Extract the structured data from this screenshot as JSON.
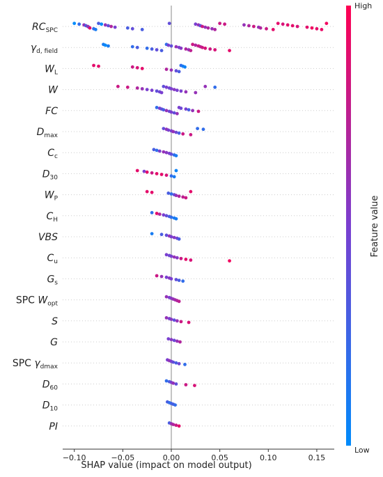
{
  "chart_data": {
    "type": "scatter",
    "subtype": "shap-beeswarm",
    "title": "",
    "xlabel": "SHAP value (impact on model output)",
    "xlim": [
      -0.112,
      0.168
    ],
    "xticks": [
      -0.1,
      -0.05,
      0.0,
      0.05,
      0.1,
      0.15
    ],
    "xtick_labels": [
      "−0.10",
      "−0.05",
      "0.00",
      "0.05",
      "0.10",
      "0.15"
    ],
    "grid": "dotted row lines",
    "colorbar": {
      "title": "Feature value",
      "high_label": "High",
      "low_label": "Low",
      "high_color": "#ff0052",
      "low_color": "#008bfb",
      "placement": "right"
    },
    "features": [
      {
        "name": "RC_SPC",
        "label_main": "RC",
        "label_sub": "SPC",
        "italic_main": true,
        "points": [
          [
            -0.1,
            0.0
          ],
          [
            -0.095,
            0.2
          ],
          [
            -0.09,
            0.6
          ],
          [
            -0.088,
            0.3
          ],
          [
            -0.086,
            0.7
          ],
          [
            -0.085,
            0.4
          ],
          [
            -0.084,
            0.9
          ],
          [
            -0.08,
            0.2
          ],
          [
            -0.078,
            0.1
          ],
          [
            -0.075,
            0.3
          ],
          [
            -0.072,
            0.0
          ],
          [
            -0.068,
            0.6
          ],
          [
            -0.065,
            0.4
          ],
          [
            -0.062,
            0.7
          ],
          [
            -0.058,
            0.5
          ],
          [
            -0.045,
            0.3
          ],
          [
            -0.04,
            0.4
          ],
          [
            -0.03,
            0.3
          ],
          [
            -0.002,
            0.4
          ],
          [
            0.025,
            0.5
          ],
          [
            0.028,
            0.6
          ],
          [
            0.03,
            0.4
          ],
          [
            0.032,
            0.8
          ],
          [
            0.035,
            0.6
          ],
          [
            0.038,
            0.7
          ],
          [
            0.042,
            0.6
          ],
          [
            0.045,
            0.7
          ],
          [
            0.05,
            0.8
          ],
          [
            0.055,
            0.8
          ],
          [
            0.075,
            0.6
          ],
          [
            0.08,
            0.7
          ],
          [
            0.085,
            0.8
          ],
          [
            0.09,
            0.6
          ],
          [
            0.092,
            0.7
          ],
          [
            0.098,
            0.8
          ],
          [
            0.105,
            0.9
          ],
          [
            0.11,
            0.9
          ],
          [
            0.115,
            0.85
          ],
          [
            0.12,
            0.9
          ],
          [
            0.125,
            0.9
          ],
          [
            0.13,
            0.85
          ],
          [
            0.14,
            0.9
          ],
          [
            0.145,
            0.95
          ],
          [
            0.15,
            0.9
          ],
          [
            0.155,
            0.92
          ],
          [
            0.16,
            0.95
          ]
        ]
      },
      {
        "name": "gamma_d_field",
        "label_main": "γ",
        "label_sub": "d, field",
        "italic_main": true,
        "points": [
          [
            -0.07,
            0.1
          ],
          [
            -0.068,
            0.0
          ],
          [
            -0.065,
            0.1
          ],
          [
            -0.04,
            0.2
          ],
          [
            -0.035,
            0.3
          ],
          [
            -0.025,
            0.2
          ],
          [
            -0.02,
            0.3
          ],
          [
            -0.015,
            0.4
          ],
          [
            -0.01,
            0.3
          ],
          [
            -0.005,
            0.2
          ],
          [
            -0.003,
            0.5
          ],
          [
            0.0,
            0.4
          ],
          [
            0.005,
            0.6
          ],
          [
            0.008,
            0.5
          ],
          [
            0.01,
            0.55
          ],
          [
            0.015,
            0.7
          ],
          [
            0.018,
            0.6
          ],
          [
            0.02,
            0.75
          ],
          [
            0.022,
            0.8
          ],
          [
            0.025,
            0.7
          ],
          [
            0.028,
            0.8
          ],
          [
            0.03,
            0.75
          ],
          [
            0.032,
            0.8
          ],
          [
            0.035,
            0.85
          ],
          [
            0.04,
            0.8
          ],
          [
            0.045,
            0.85
          ],
          [
            0.06,
            0.9
          ]
        ]
      },
      {
        "name": "W_L",
        "label_main": "W",
        "label_sub": "L",
        "italic_main": true,
        "points": [
          [
            -0.08,
            0.9
          ],
          [
            -0.075,
            0.9
          ],
          [
            -0.04,
            0.8
          ],
          [
            -0.035,
            0.85
          ],
          [
            -0.03,
            0.9
          ],
          [
            -0.005,
            0.7
          ],
          [
            0.0,
            0.6
          ],
          [
            0.005,
            0.4
          ],
          [
            0.008,
            0.3
          ],
          [
            0.01,
            0.2
          ],
          [
            0.012,
            0.1
          ],
          [
            0.014,
            0.05
          ]
        ]
      },
      {
        "name": "W",
        "label_main": "W",
        "label_sub": "",
        "italic_main": true,
        "points": [
          [
            -0.055,
            0.8
          ],
          [
            -0.045,
            0.8
          ],
          [
            -0.035,
            0.7
          ],
          [
            -0.03,
            0.6
          ],
          [
            -0.025,
            0.5
          ],
          [
            -0.02,
            0.5
          ],
          [
            -0.015,
            0.4
          ],
          [
            -0.012,
            0.45
          ],
          [
            -0.01,
            0.5
          ],
          [
            -0.008,
            0.4
          ],
          [
            -0.005,
            0.5
          ],
          [
            -0.002,
            0.45
          ],
          [
            0.0,
            0.5
          ],
          [
            0.003,
            0.55
          ],
          [
            0.006,
            0.5
          ],
          [
            0.01,
            0.5
          ],
          [
            0.015,
            0.6
          ],
          [
            0.025,
            0.6
          ],
          [
            0.035,
            0.6
          ],
          [
            0.045,
            0.2
          ]
        ]
      },
      {
        "name": "FC",
        "label_main": "FC",
        "label_sub": "",
        "italic_main": true,
        "points": [
          [
            -0.015,
            0.2
          ],
          [
            -0.012,
            0.5
          ],
          [
            -0.01,
            0.4
          ],
          [
            -0.008,
            0.3
          ],
          [
            -0.005,
            0.6
          ],
          [
            -0.002,
            0.45
          ],
          [
            0.0,
            0.5
          ],
          [
            0.003,
            0.4
          ],
          [
            0.006,
            0.6
          ],
          [
            0.008,
            0.5
          ],
          [
            0.01,
            0.45
          ],
          [
            0.015,
            0.5
          ],
          [
            0.018,
            0.3
          ],
          [
            0.022,
            0.6
          ],
          [
            0.028,
            0.8
          ]
        ]
      },
      {
        "name": "D_max",
        "label_main": "D",
        "label_sub": "max",
        "italic_main": true,
        "points": [
          [
            -0.008,
            0.4
          ],
          [
            -0.005,
            0.6
          ],
          [
            -0.003,
            0.5
          ],
          [
            0.0,
            0.5
          ],
          [
            0.002,
            0.6
          ],
          [
            0.005,
            0.45
          ],
          [
            0.008,
            0.3
          ],
          [
            0.012,
            0.8
          ],
          [
            0.02,
            0.8
          ],
          [
            0.027,
            0.2
          ],
          [
            0.033,
            0.2
          ]
        ]
      },
      {
        "name": "C_c",
        "label_main": "C",
        "label_sub": "c",
        "italic_main": true,
        "points": [
          [
            -0.018,
            0.3
          ],
          [
            -0.015,
            0.2
          ],
          [
            -0.012,
            0.5
          ],
          [
            -0.008,
            0.6
          ],
          [
            -0.005,
            0.55
          ],
          [
            -0.002,
            0.5
          ],
          [
            0.0,
            0.4
          ],
          [
            0.003,
            0.2
          ],
          [
            0.005,
            0.1
          ]
        ]
      },
      {
        "name": "D_30",
        "label_main": "D",
        "label_sub": "30",
        "italic_main": true,
        "points": [
          [
            -0.035,
            0.9
          ],
          [
            -0.028,
            0.5
          ],
          [
            -0.025,
            0.9
          ],
          [
            -0.02,
            0.8
          ],
          [
            -0.015,
            0.9
          ],
          [
            -0.01,
            0.9
          ],
          [
            -0.005,
            0.85
          ],
          [
            0.0,
            0.2
          ],
          [
            0.003,
            0.1
          ],
          [
            0.005,
            0.05
          ]
        ]
      },
      {
        "name": "W_P",
        "label_main": "W",
        "label_sub": "P",
        "italic_main": true,
        "points": [
          [
            -0.025,
            0.9
          ],
          [
            -0.02,
            0.9
          ],
          [
            -0.003,
            0.3
          ],
          [
            0.0,
            0.2
          ],
          [
            0.003,
            0.4
          ],
          [
            0.005,
            0.6
          ],
          [
            0.008,
            0.7
          ],
          [
            0.012,
            0.75
          ],
          [
            0.015,
            0.8
          ],
          [
            0.02,
            0.9
          ]
        ]
      },
      {
        "name": "C_H",
        "label_main": "C",
        "label_sub": "H",
        "italic_main": true,
        "points": [
          [
            -0.02,
            0.2
          ],
          [
            -0.015,
            0.9
          ],
          [
            -0.012,
            0.7
          ],
          [
            -0.008,
            0.5
          ],
          [
            -0.005,
            0.4
          ],
          [
            -0.002,
            0.3
          ],
          [
            0.0,
            0.2
          ],
          [
            0.003,
            0.1
          ],
          [
            0.005,
            0.1
          ]
        ]
      },
      {
        "name": "VBS",
        "label_main": "VBS",
        "label_sub": "",
        "italic_main": true,
        "points": [
          [
            -0.02,
            0.1
          ],
          [
            -0.01,
            0.3
          ],
          [
            -0.005,
            0.4
          ],
          [
            -0.002,
            0.6
          ],
          [
            0.0,
            0.5
          ],
          [
            0.003,
            0.55
          ],
          [
            0.006,
            0.45
          ],
          [
            0.008,
            0.3
          ]
        ]
      },
      {
        "name": "C_u",
        "label_main": "C",
        "label_sub": "u",
        "italic_main": true,
        "points": [
          [
            -0.005,
            0.5
          ],
          [
            -0.002,
            0.45
          ],
          [
            0.0,
            0.5
          ],
          [
            0.003,
            0.6
          ],
          [
            0.006,
            0.55
          ],
          [
            0.01,
            0.8
          ],
          [
            0.015,
            0.9
          ],
          [
            0.02,
            0.85
          ],
          [
            0.06,
            0.95
          ]
        ]
      },
      {
        "name": "G_s",
        "label_main": "G",
        "label_sub": "s",
        "italic_main": true,
        "points": [
          [
            -0.015,
            0.8
          ],
          [
            -0.01,
            0.6
          ],
          [
            -0.005,
            0.5
          ],
          [
            -0.002,
            0.55
          ],
          [
            0.0,
            0.5
          ],
          [
            0.005,
            0.4
          ],
          [
            0.008,
            0.3
          ],
          [
            0.012,
            0.2
          ]
        ]
      },
      {
        "name": "SPC_W_opt",
        "label_main": "SPC ",
        "label_mid": "W",
        "label_sub": "opt",
        "italic_main": false,
        "points": [
          [
            -0.005,
            0.6
          ],
          [
            -0.002,
            0.5
          ],
          [
            0.0,
            0.55
          ],
          [
            0.002,
            0.6
          ],
          [
            0.004,
            0.65
          ],
          [
            0.006,
            0.7
          ],
          [
            0.008,
            0.75
          ]
        ]
      },
      {
        "name": "S",
        "label_main": "S",
        "label_sub": "",
        "italic_main": true,
        "points": [
          [
            -0.005,
            0.6
          ],
          [
            -0.002,
            0.5
          ],
          [
            0.0,
            0.55
          ],
          [
            0.003,
            0.4
          ],
          [
            0.006,
            0.6
          ],
          [
            0.01,
            0.8
          ],
          [
            0.018,
            0.85
          ]
        ]
      },
      {
        "name": "G",
        "label_main": "G",
        "label_sub": "",
        "italic_main": true,
        "points": [
          [
            -0.003,
            0.5
          ],
          [
            0.0,
            0.55
          ],
          [
            0.003,
            0.45
          ],
          [
            0.006,
            0.6
          ],
          [
            0.009,
            0.7
          ]
        ]
      },
      {
        "name": "SPC_gamma_dmax",
        "label_main": "SPC ",
        "label_mid": "γ",
        "label_sub": "dmax",
        "italic_main": false,
        "points": [
          [
            -0.004,
            0.5
          ],
          [
            -0.002,
            0.6
          ],
          [
            0.0,
            0.5
          ],
          [
            0.002,
            0.4
          ],
          [
            0.005,
            0.3
          ],
          [
            0.008,
            0.45
          ],
          [
            0.014,
            0.2
          ]
        ]
      },
      {
        "name": "D_60",
        "label_main": "D",
        "label_sub": "60",
        "italic_main": true,
        "points": [
          [
            -0.005,
            0.2
          ],
          [
            -0.002,
            0.3
          ],
          [
            0.0,
            0.5
          ],
          [
            0.002,
            0.6
          ],
          [
            0.005,
            0.4
          ],
          [
            0.015,
            0.8
          ],
          [
            0.024,
            0.85
          ]
        ]
      },
      {
        "name": "D_10",
        "label_main": "D",
        "label_sub": "10",
        "italic_main": true,
        "points": [
          [
            -0.004,
            0.3
          ],
          [
            -0.002,
            0.2
          ],
          [
            0.0,
            0.25
          ],
          [
            0.002,
            0.3
          ],
          [
            0.004,
            0.2
          ]
        ]
      },
      {
        "name": "PI",
        "label_main": "PI",
        "label_sub": "",
        "italic_main": true,
        "points": [
          [
            -0.002,
            0.3
          ],
          [
            0.0,
            0.6
          ],
          [
            0.002,
            0.7
          ],
          [
            0.005,
            0.8
          ],
          [
            0.008,
            0.9
          ]
        ]
      }
    ]
  }
}
